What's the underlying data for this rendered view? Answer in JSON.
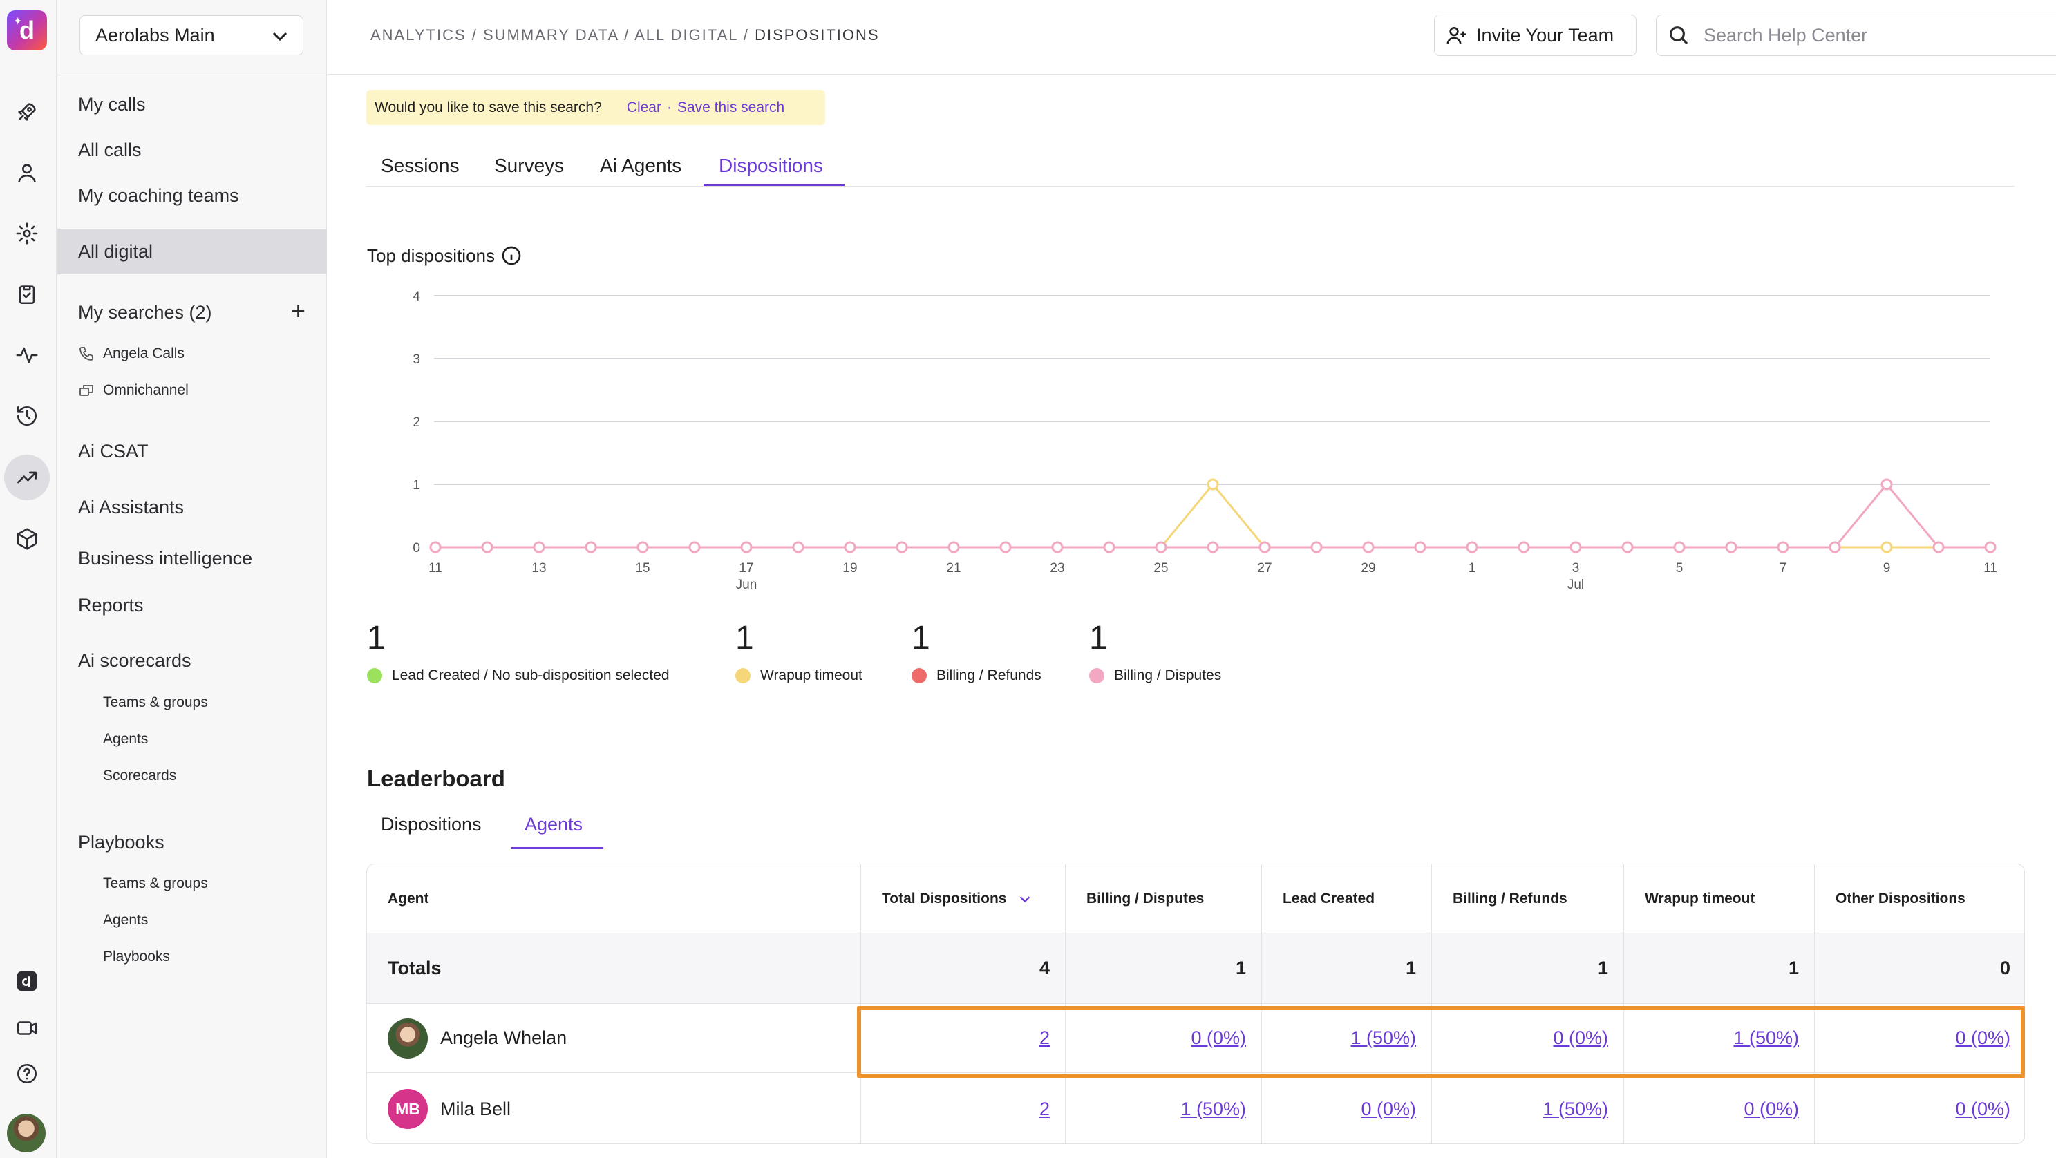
{
  "rail": {
    "logo_letter": "d",
    "icons": [
      "rocket-icon",
      "user-icon",
      "gear-icon",
      "clipboard-icon",
      "activity-icon",
      "history-icon",
      "trending-up-icon",
      "cube-icon",
      "dialpad-app-icon",
      "video-icon",
      "help-icon"
    ]
  },
  "sidebar": {
    "workspace": "Aerolabs Main",
    "items": {
      "my_calls": "My calls",
      "all_calls": "All calls",
      "my_coaching_teams": "My coaching teams",
      "all_digital": "All digital",
      "my_searches": "My searches (2)",
      "angela_calls": "Angela Calls",
      "omnichannel": "Omnichannel",
      "ai_csat": "Ai CSAT",
      "ai_assistants": "Ai Assistants",
      "business_intelligence": "Business intelligence",
      "reports": "Reports",
      "ai_scorecards": "Ai scorecards",
      "sc_teams": "Teams & groups",
      "sc_agents": "Agents",
      "sc_scorecards": "Scorecards",
      "playbooks": "Playbooks",
      "pb_teams": "Teams & groups",
      "pb_agents": "Agents",
      "pb_playbooks": "Playbooks"
    }
  },
  "header": {
    "breadcrumb_1": "ANALYTICS",
    "breadcrumb_2": "SUMMARY DATA",
    "breadcrumb_3": "ALL DIGITAL",
    "breadcrumb_4": "DISPOSITIONS",
    "sep": "/",
    "invite_label": "Invite Your Team",
    "search_placeholder": "Search Help Center"
  },
  "banner": {
    "question": "Would you like to save this search?",
    "clear": "Clear",
    "dot": "·",
    "save": "Save this search"
  },
  "tabs": {
    "sessions": "Sessions",
    "surveys": "Surveys",
    "ai_agents": "Ai Agents",
    "dispositions": "Dispositions"
  },
  "chart_title": "Top dispositions",
  "chart_data": {
    "type": "line",
    "x": [
      "Jun 11",
      "Jun 12",
      "Jun 13",
      "Jun 14",
      "Jun 15",
      "Jun 16",
      "Jun 17",
      "Jun 18",
      "Jun 19",
      "Jun 20",
      "Jun 21",
      "Jun 22",
      "Jun 23",
      "Jun 24",
      "Jun 25",
      "Jun 26",
      "Jun 27",
      "Jun 28",
      "Jun 29",
      "Jun 30",
      "Jul 1",
      "Jul 2",
      "Jul 3",
      "Jul 4",
      "Jul 5",
      "Jul 6",
      "Jul 7",
      "Jul 8",
      "Jul 9",
      "Jul 10",
      "Jul 11"
    ],
    "tick_labels": [
      "11",
      "13",
      "15",
      "17",
      "19",
      "21",
      "23",
      "25",
      "27",
      "29",
      "1",
      "3",
      "5",
      "7",
      "9",
      "11"
    ],
    "month_labels": [
      {
        "label": "Jun",
        "tick": "17"
      },
      {
        "label": "Jul",
        "tick": "3"
      }
    ],
    "ylim": [
      0,
      4
    ],
    "y_ticks": [
      "0",
      "1",
      "2",
      "3",
      "4"
    ],
    "grid": true,
    "series": [
      {
        "name": "Wrapup timeout",
        "color": "#f5d77a",
        "values": [
          0,
          0,
          0,
          0,
          0,
          0,
          0,
          0,
          0,
          0,
          0,
          0,
          0,
          0,
          0,
          1,
          0,
          0,
          0,
          0,
          0,
          0,
          0,
          0,
          0,
          0,
          0,
          0,
          0,
          0,
          0
        ]
      },
      {
        "name": "Billing / Disputes",
        "color": "#f2a7c3",
        "values": [
          0,
          0,
          0,
          0,
          0,
          0,
          0,
          0,
          0,
          0,
          0,
          0,
          0,
          0,
          0,
          0,
          0,
          0,
          0,
          0,
          0,
          0,
          0,
          0,
          0,
          0,
          0,
          0,
          1,
          0,
          0
        ]
      }
    ]
  },
  "summary": [
    {
      "count": "1",
      "label": "Lead Created / No sub-disposition selected",
      "color": "#9be15d"
    },
    {
      "count": "1",
      "label": "Wrapup timeout",
      "color": "#f5d77a"
    },
    {
      "count": "1",
      "label": "Billing / Refunds",
      "color": "#ef6b6b"
    },
    {
      "count": "1",
      "label": "Billing / Disputes",
      "color": "#f2a7c3"
    }
  ],
  "leaderboard": {
    "title": "Leaderboard",
    "tab_dispositions": "Dispositions",
    "tab_agents": "Agents",
    "columns": [
      "Agent",
      "Total Dispositions",
      "Billing / Disputes",
      "Lead Created",
      "Billing / Refunds",
      "Wrapup timeout",
      "Other Dispositions"
    ],
    "totals": {
      "label": "Totals",
      "values": [
        "4",
        "1",
        "1",
        "1",
        "1",
        "0"
      ]
    },
    "rows": [
      {
        "name": "Angela Whelan",
        "initials": "",
        "values": [
          "2",
          "0 (0%)",
          "1 (50%)",
          "0 (0%)",
          "1 (50%)",
          "0 (0%)"
        ]
      },
      {
        "name": "Mila Bell",
        "initials": "MB",
        "values": [
          "2",
          "1 (50%)",
          "0 (0%)",
          "1 (50%)",
          "0 (0%)",
          "0 (0%)"
        ]
      }
    ]
  },
  "colors": {
    "accent": "#6c3bd6",
    "highlight": "#ee932c",
    "banner_bg": "#fdf4c8"
  }
}
